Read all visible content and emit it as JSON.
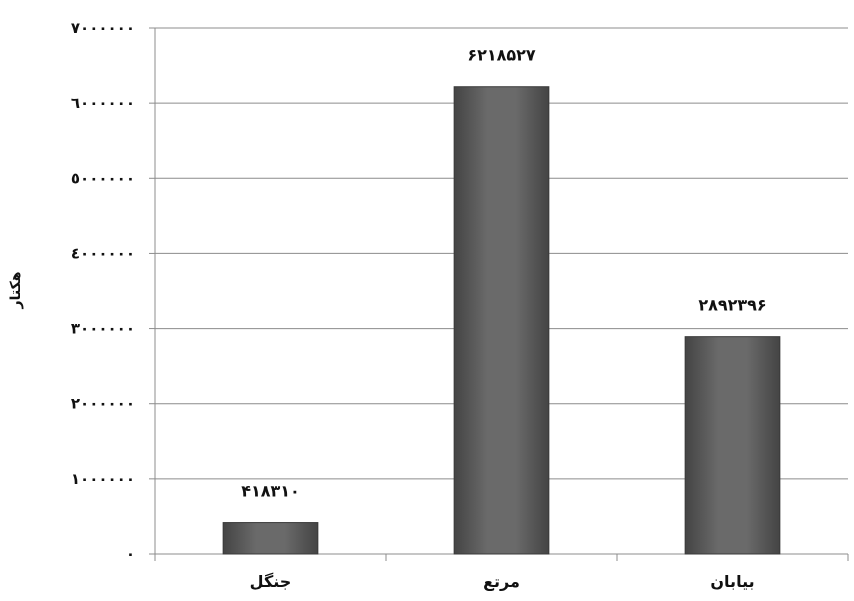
{
  "chart_data": {
    "type": "bar",
    "title": "",
    "xlabel": "",
    "ylabel": "هکتار",
    "categories": [
      "جنگل",
      "مرتع",
      "بیابان"
    ],
    "values": [
      418310,
      6218527,
      2892396
    ],
    "value_labels": [
      "۴۱۸۳۱۰",
      "۶۲۱۸۵۲۷",
      "۲۸۹۲۳۹۶"
    ],
    "ylim": [
      0,
      7000000
    ],
    "yticks": [
      0,
      1000000,
      2000000,
      3000000,
      4000000,
      5000000,
      6000000,
      7000000
    ],
    "ytick_labels": [
      "۰",
      "۱۰۰۰۰۰۰",
      "۲۰۰۰۰۰۰",
      "۳۰۰۰۰۰۰",
      "٤۰۰۰۰۰۰",
      "٥۰۰۰۰۰۰",
      "٦۰۰۰۰۰۰",
      "۷۰۰۰۰۰۰"
    ],
    "grid": true,
    "legend": "none",
    "colors": {
      "bar": "#5a5a5a",
      "bar_edge": "#3a3a3a",
      "grid": "#8c8c8c",
      "axis": "#8c8c8c"
    }
  }
}
